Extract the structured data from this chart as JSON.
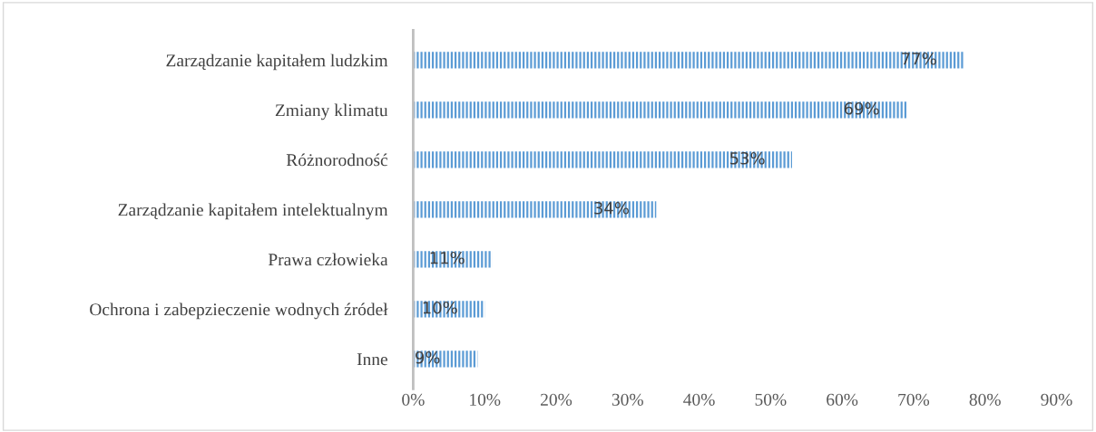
{
  "chart_data": {
    "type": "bar",
    "orientation": "horizontal",
    "categories": [
      "Zarządzanie kapitałem ludzkim",
      "Zmiany klimatu",
      "Różnorodność",
      "Zarządzanie kapitałem intelektualnym",
      "Prawa człowieka",
      "Ochrona i zabepzieczenie wodnych źródeł",
      "Inne"
    ],
    "values": [
      77,
      69,
      53,
      34,
      11,
      10,
      9
    ],
    "value_labels": [
      "77%",
      "69%",
      "53%",
      "34%",
      "11%",
      "10%",
      "9%"
    ],
    "color": "#5b9bd5",
    "xlim": [
      0,
      90
    ],
    "xticks": [
      {
        "value": 0,
        "label": "0%"
      },
      {
        "value": 10,
        "label": "10%"
      },
      {
        "value": 20,
        "label": "20%"
      },
      {
        "value": 30,
        "label": "30%"
      },
      {
        "value": 40,
        "label": "40%"
      },
      {
        "value": 50,
        "label": "50%"
      },
      {
        "value": 60,
        "label": "60%"
      },
      {
        "value": 70,
        "label": "70%"
      },
      {
        "value": 80,
        "label": "80%"
      },
      {
        "value": 90,
        "label": "90%"
      }
    ],
    "grid": false,
    "legend": false
  }
}
